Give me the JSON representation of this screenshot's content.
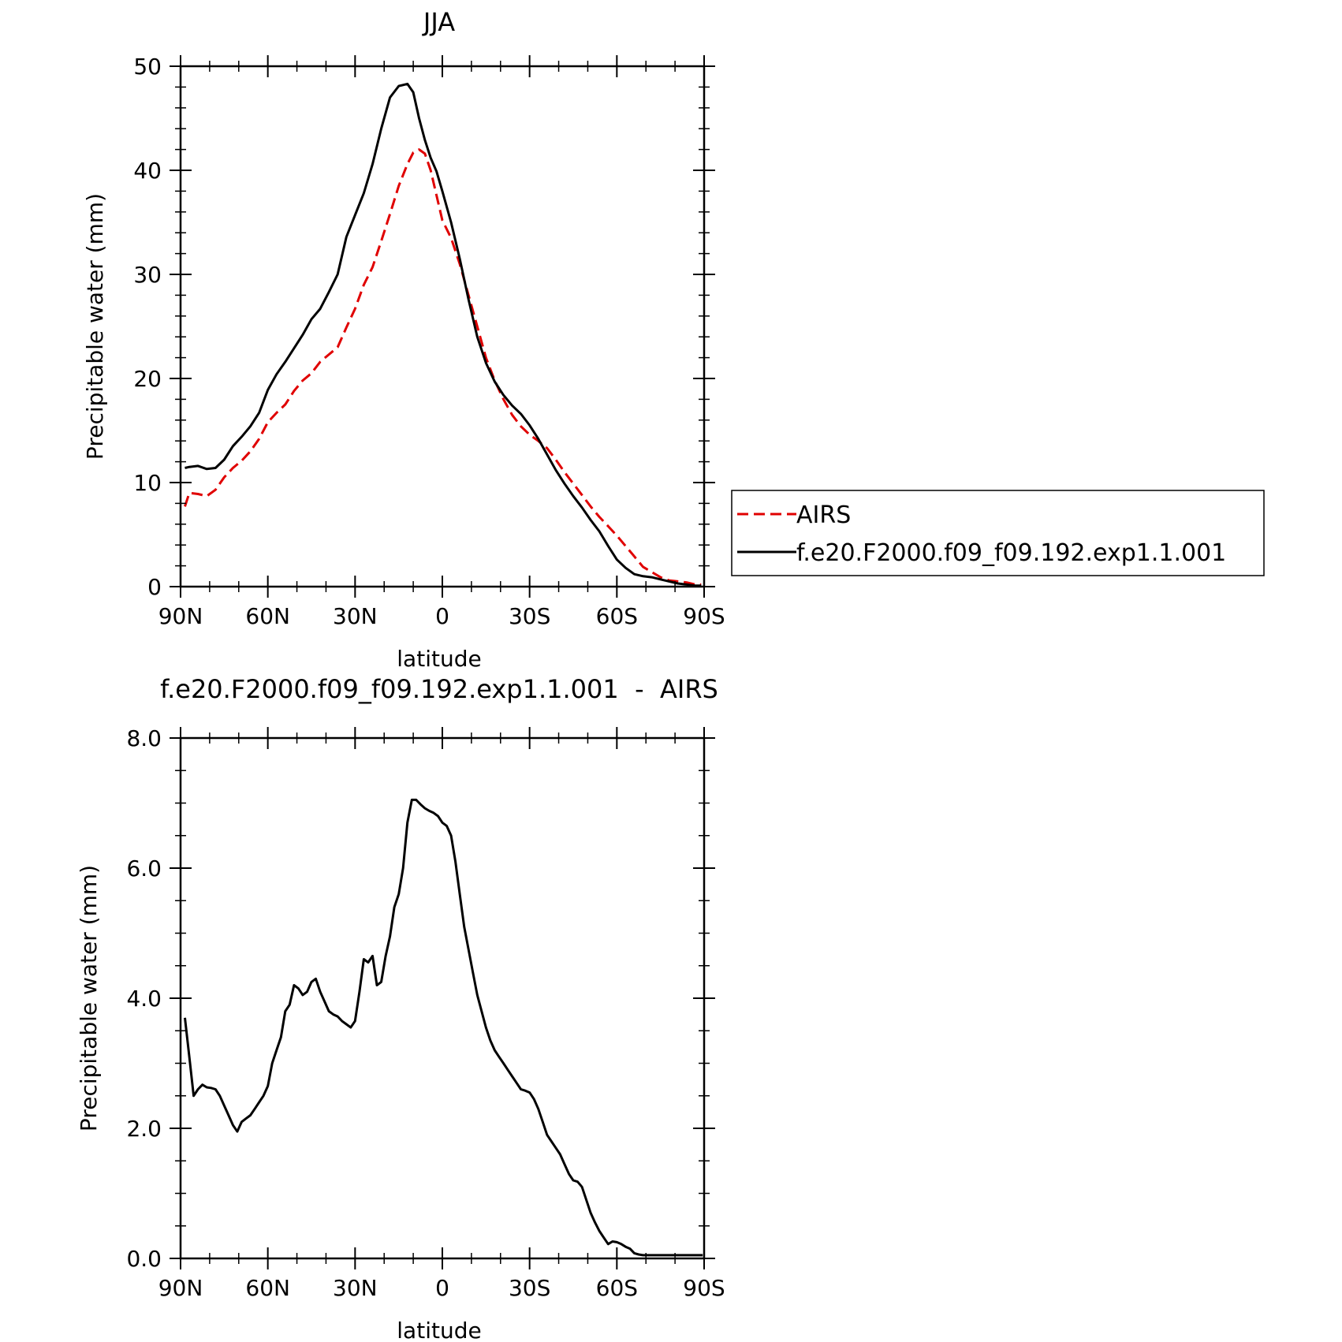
{
  "chart_data": [
    {
      "type": "line",
      "title": "JJA",
      "xlabel": "latitude",
      "ylabel": "Precipitable water (mm)",
      "xlim": [
        90,
        -90
      ],
      "ylim": [
        0,
        50
      ],
      "x_ticks": [
        90,
        60,
        30,
        0,
        -30,
        -60,
        -90
      ],
      "x_tick_labels": [
        "90N",
        "60N",
        "30N",
        "0",
        "30S",
        "60S",
        "90S"
      ],
      "y_ticks": [
        0,
        10,
        20,
        30,
        40,
        50
      ],
      "y_tick_labels": [
        "0",
        "10",
        "20",
        "30",
        "40",
        "50"
      ],
      "legend_position": "right",
      "series": [
        {
          "name": "AIRS",
          "color": "#e00000",
          "dash": true,
          "x": [
            88.5,
            87,
            84,
            81,
            78,
            75,
            72,
            69,
            66,
            63,
            60,
            57,
            54,
            51,
            48,
            45,
            42,
            39,
            36,
            33,
            30,
            27,
            24,
            21,
            18,
            15,
            12,
            10,
            8,
            6,
            4,
            2,
            0,
            -3,
            -6,
            -9,
            -12,
            -15,
            -18,
            -21,
            -24,
            -27,
            -30,
            -33,
            -36,
            -39,
            -42,
            -45,
            -48,
            -51,
            -54,
            -57,
            -60,
            -63,
            -66,
            -69,
            -72,
            -75,
            -78,
            -81,
            -84,
            -87,
            -89
          ],
          "y": [
            7.7,
            9.0,
            8.9,
            8.7,
            9.3,
            10.5,
            11.4,
            12.1,
            13.0,
            14.2,
            15.8,
            16.7,
            17.5,
            18.8,
            19.8,
            20.5,
            21.6,
            22.3,
            23.0,
            24.9,
            26.7,
            29.0,
            30.7,
            33.2,
            35.8,
            38.5,
            40.6,
            41.7,
            42.0,
            41.6,
            40.0,
            37.6,
            35.2,
            33.5,
            31.0,
            28.0,
            25.0,
            22.0,
            19.8,
            18.0,
            16.5,
            15.4,
            14.6,
            14.0,
            13.3,
            12.2,
            11.0,
            9.9,
            8.8,
            7.7,
            6.7,
            5.8,
            4.9,
            3.9,
            2.9,
            1.9,
            1.4,
            0.9,
            0.6,
            0.5,
            0.4,
            0.2,
            0.2
          ]
        },
        {
          "name": "f.e20.F2000.f09_f09.192.exp1.1.001",
          "color": "#000000",
          "dash": false,
          "x": [
            88.5,
            87,
            84,
            81,
            78,
            75,
            72,
            69,
            66,
            63,
            60,
            57,
            54,
            51,
            48,
            45,
            42,
            39,
            36,
            33,
            30,
            27,
            24,
            21,
            18,
            15,
            12,
            10,
            8,
            6,
            4,
            2,
            0,
            -3,
            -6,
            -9,
            -12,
            -15,
            -18,
            -21,
            -24,
            -27,
            -30,
            -33,
            -36,
            -39,
            -42,
            -45,
            -48,
            -51,
            -54,
            -57,
            -60,
            -63,
            -66,
            -69,
            -72,
            -75,
            -78,
            -81,
            -84,
            -87,
            -89
          ],
          "y": [
            11.4,
            11.5,
            11.6,
            11.3,
            11.4,
            12.2,
            13.5,
            14.4,
            15.4,
            16.7,
            18.9,
            20.4,
            21.6,
            22.9,
            24.2,
            25.7,
            26.7,
            28.3,
            30.0,
            33.6,
            35.7,
            37.8,
            40.6,
            44.0,
            47.0,
            48.1,
            48.3,
            47.5,
            45.0,
            42.9,
            41.2,
            39.9,
            38.0,
            35.0,
            31.5,
            27.6,
            24.0,
            21.5,
            19.7,
            18.4,
            17.4,
            16.6,
            15.5,
            14.2,
            12.7,
            11.2,
            9.9,
            8.7,
            7.6,
            6.4,
            5.3,
            3.9,
            2.6,
            1.8,
            1.2,
            1.0,
            0.9,
            0.7,
            0.5,
            0.3,
            0.2,
            0.1,
            0.1
          ]
        }
      ]
    },
    {
      "type": "line",
      "title": "f.e20.F2000.f09_f09.192.exp1.1.001  -  AIRS",
      "xlabel": "latitude",
      "ylabel": "Precipitable water (mm)",
      "xlim": [
        90,
        -90
      ],
      "ylim": [
        0,
        8
      ],
      "x_ticks": [
        90,
        60,
        30,
        0,
        -30,
        -60,
        -90
      ],
      "x_tick_labels": [
        "90N",
        "60N",
        "30N",
        "0",
        "30S",
        "60S",
        "90S"
      ],
      "y_ticks": [
        0,
        2,
        4,
        6,
        8
      ],
      "y_tick_labels": [
        "0.0",
        "2.0",
        "4.0",
        "6.0",
        "8.0"
      ],
      "series": [
        {
          "name": "f.e20.F2000.f09_f09.192.exp1.1.001 - AIRS",
          "color": "#000000",
          "dash": false,
          "x": [
            88.5,
            87,
            85.5,
            84,
            82.5,
            81,
            79.5,
            78,
            76.5,
            75,
            73.5,
            72,
            70.5,
            69,
            67.5,
            66,
            64.5,
            63,
            61.5,
            60,
            58.5,
            57,
            55.5,
            54,
            52.5,
            51,
            49.5,
            48,
            46.5,
            45,
            43.5,
            42,
            40.5,
            39,
            37.5,
            36,
            34.5,
            33,
            31.5,
            30,
            28.5,
            27,
            25.5,
            24,
            22.5,
            21,
            19.5,
            18,
            16.5,
            15,
            13.5,
            12,
            10.5,
            9,
            7.5,
            6,
            4.5,
            3,
            1.5,
            0,
            -1.5,
            -3,
            -4.5,
            -6,
            -7.5,
            -9,
            -10.5,
            -12,
            -13.5,
            -15,
            -16.5,
            -18,
            -19.5,
            -21,
            -22.5,
            -24,
            -25.5,
            -27,
            -28.5,
            -30,
            -31.5,
            -33,
            -34.5,
            -36,
            -37.5,
            -39,
            -40.5,
            -42,
            -43.5,
            -45,
            -46.5,
            -48,
            -49.5,
            -51,
            -52.5,
            -54,
            -55.5,
            -57,
            -58.5,
            -60,
            -61.5,
            -63,
            -64.5,
            -66,
            -67.5,
            -69,
            -70.5,
            -72,
            -73.5,
            -75,
            -76.5,
            -78,
            -79.5,
            -81,
            -82.5,
            -84,
            -85.5,
            -87,
            -88.5,
            -89.5
          ],
          "y": [
            3.7,
            3.1,
            2.5,
            2.6,
            2.67,
            2.63,
            2.62,
            2.6,
            2.5,
            2.35,
            2.2,
            2.05,
            1.95,
            2.1,
            2.15,
            2.2,
            2.3,
            2.4,
            2.5,
            2.65,
            3.0,
            3.2,
            3.4,
            3.8,
            3.9,
            4.2,
            4.15,
            4.05,
            4.1,
            4.25,
            4.3,
            4.1,
            3.95,
            3.8,
            3.75,
            3.72,
            3.65,
            3.6,
            3.55,
            3.65,
            4.1,
            4.6,
            4.55,
            4.65,
            4.2,
            4.25,
            4.65,
            4.95,
            5.4,
            5.6,
            6.0,
            6.7,
            7.05,
            7.05,
            6.98,
            6.92,
            6.88,
            6.85,
            6.8,
            6.7,
            6.65,
            6.5,
            6.1,
            5.6,
            5.1,
            4.75,
            4.4,
            4.05,
            3.8,
            3.55,
            3.35,
            3.2,
            3.1,
            3.0,
            2.9,
            2.8,
            2.7,
            2.6,
            2.58,
            2.55,
            2.45,
            2.3,
            2.1,
            1.9,
            1.8,
            1.7,
            1.6,
            1.45,
            1.3,
            1.2,
            1.18,
            1.1,
            0.9,
            0.7,
            0.55,
            0.42,
            0.32,
            0.22,
            0.26,
            0.25,
            0.22,
            0.18,
            0.15,
            0.08,
            0.06,
            0.05,
            0.05,
            0.05,
            0.05,
            0.05,
            0.05,
            0.05,
            0.05,
            0.05,
            0.05,
            0.05,
            0.05,
            0.05,
            0.05,
            0.05
          ]
        }
      ]
    }
  ]
}
